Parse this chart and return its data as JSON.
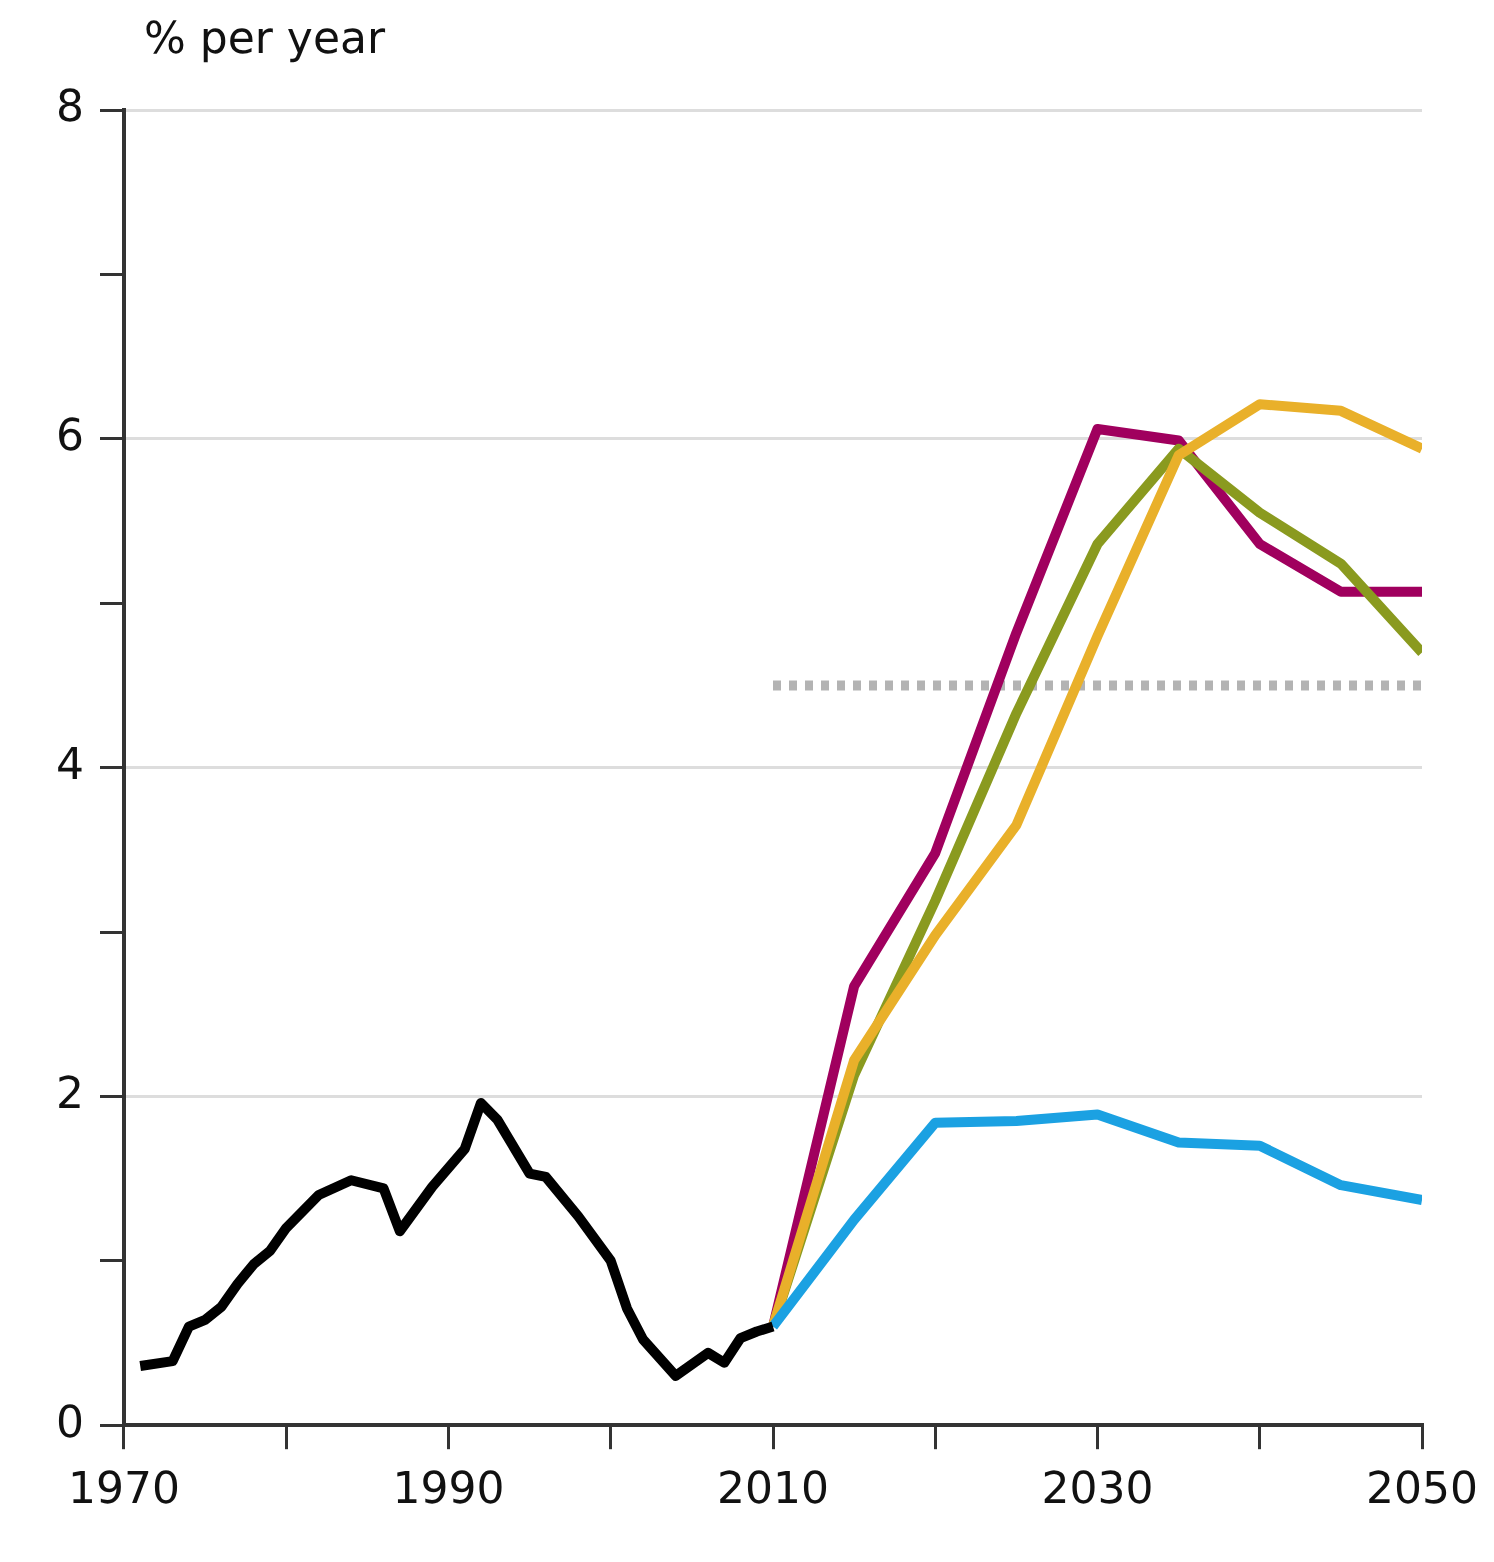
{
  "chart_data": {
    "type": "line",
    "ylabel": "% per year",
    "xlim": [
      1970,
      2050
    ],
    "xticks": [
      1970,
      {
        "value": 1980,
        "label": null
      },
      1990,
      {
        "value": 2000,
        "label": null
      },
      2010,
      {
        "value": 2020,
        "label": null
      },
      2030,
      {
        "value": 2040,
        "label": null
      },
      2050
    ],
    "ylim": [
      0,
      8
    ],
    "yticks": [
      0,
      {
        "value": 1,
        "label": null
      },
      2,
      {
        "value": 3,
        "label": null
      },
      4,
      {
        "value": 5,
        "label": null
      },
      6,
      {
        "value": 7,
        "label": null
      },
      8
    ],
    "grid": "y",
    "legend": false,
    "series": [
      {
        "color": "#000000",
        "x": [
          1971,
          1973,
          1974,
          1975,
          1976,
          1977,
          1978,
          1979,
          1980,
          1981,
          1982,
          1984,
          1986,
          1987,
          1989,
          1991,
          1992,
          1993,
          1995,
          1996,
          1998,
          2000,
          2001,
          2002,
          2004,
          2006,
          2007,
          2008,
          2009,
          2010
        ],
        "values": [
          0.36,
          0.39,
          0.6,
          0.64,
          0.72,
          0.86,
          0.98,
          1.06,
          1.2,
          1.3,
          1.4,
          1.49,
          1.44,
          1.18,
          1.45,
          1.68,
          1.96,
          1.86,
          1.53,
          1.51,
          1.27,
          1.0,
          0.71,
          0.52,
          0.3,
          0.44,
          0.38,
          0.53,
          0.57,
          0.6
        ]
      },
      {
        "color": "#1ba1e2",
        "x": [
          2010,
          2015,
          2020,
          2025,
          2030,
          2035,
          2040,
          2045,
          2050
        ],
        "values": [
          0.6,
          1.25,
          1.84,
          1.85,
          1.89,
          1.72,
          1.7,
          1.46,
          1.37
        ]
      },
      {
        "color": "#e9b02a",
        "x": [
          2010,
          2015,
          2020,
          2025,
          2030,
          2035,
          2040,
          2045,
          2050
        ],
        "values": [
          0.6,
          2.22,
          2.98,
          3.65,
          4.8,
          5.9,
          6.21,
          6.17,
          5.94
        ]
      },
      {
        "color": "#8a9a1f",
        "x": [
          2010,
          2015,
          2020,
          2025,
          2030,
          2035,
          2040,
          2045,
          2050
        ],
        "values": [
          0.6,
          2.13,
          3.19,
          4.33,
          5.36,
          5.94,
          5.55,
          5.24,
          4.7
        ]
      },
      {
        "color": "#a0005e",
        "x": [
          2010,
          2015,
          2020,
          2025,
          2030,
          2035,
          2040,
          2045,
          2050
        ],
        "values": [
          0.6,
          2.67,
          3.48,
          4.82,
          6.06,
          5.99,
          5.36,
          5.07,
          5.07
        ]
      },
      {
        "color": "#b3b3b3",
        "line_style": "dotted",
        "x": [
          2010,
          2050
        ],
        "values": [
          4.5,
          4.5
        ]
      }
    ]
  }
}
